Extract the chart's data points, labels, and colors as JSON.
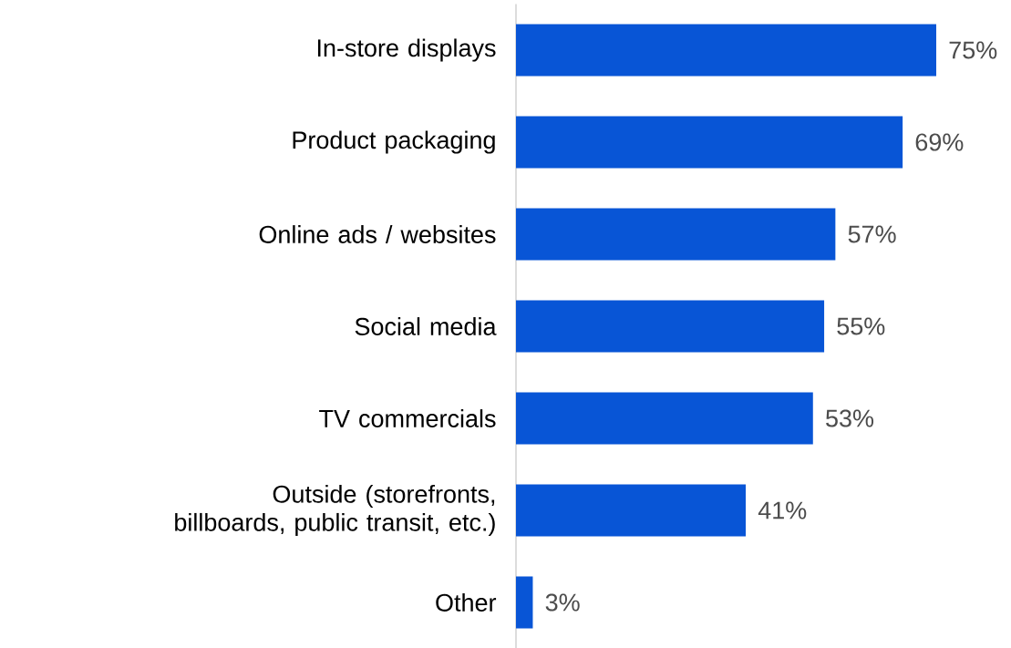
{
  "chart_data": {
    "type": "bar",
    "orientation": "horizontal",
    "categories": [
      "In-store displays",
      "Product packaging",
      "Online ads / websites",
      "Social media",
      "TV commercials",
      "Outside (storefronts, billboards, public transit, etc.)",
      "Other"
    ],
    "values": [
      75,
      69,
      57,
      55,
      53,
      41,
      3
    ],
    "value_labels": [
      "75%",
      "69%",
      "57%",
      "55%",
      "53%",
      "41%",
      "3%"
    ],
    "color": "#0855d6"
  }
}
